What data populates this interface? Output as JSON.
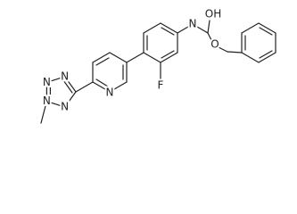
{
  "atom_labels": [
    "N",
    "OH",
    "O",
    "F",
    "N",
    "N",
    "N",
    "N",
    "N"
  ]
}
